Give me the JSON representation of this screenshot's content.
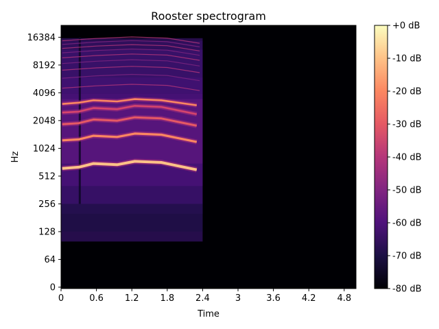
{
  "chart_data": {
    "type": "heatmap",
    "title": "Rooster spectrogram",
    "xlabel": "Time",
    "ylabel": "Hz",
    "x_scale": "linear",
    "y_scale": "symlog",
    "xlim": [
      0,
      5.0
    ],
    "x_ticks": [
      0,
      0.6,
      1.2,
      1.8,
      2.4,
      3.0,
      3.6,
      4.2,
      4.8
    ],
    "x_tick_labels": [
      "0",
      "0.6",
      "1.2",
      "1.8",
      "2.4",
      "3",
      "3.6",
      "4.2",
      "4.8"
    ],
    "y_ticks": [
      0,
      64,
      128,
      256,
      512,
      1024,
      2048,
      4096,
      8192,
      16384
    ],
    "y_tick_labels": [
      "0",
      "64",
      "128",
      "256",
      "512",
      "1024",
      "2048",
      "4096",
      "8192",
      "16384"
    ],
    "ylim": [
      0,
      22050
    ],
    "colormap": "magma",
    "colorbar": {
      "range": [
        -80,
        0
      ],
      "ticks": [
        0,
        -10,
        -20,
        -30,
        -40,
        -50,
        -60,
        -70,
        -80
      ],
      "tick_labels": [
        "+0 dB",
        "-10 dB",
        "-20 dB",
        "-30 dB",
        "-40 dB",
        "-50 dB",
        "-60 dB",
        "-70 dB",
        "-80 dB"
      ]
    },
    "sound_duration_s": 2.4,
    "harmonic_tracks_hz": [
      {
        "segments": [
          [
            0.02,
            620
          ],
          [
            0.3,
            640
          ],
          [
            0.55,
            700
          ],
          [
            0.95,
            680
          ],
          [
            1.25,
            740
          ],
          [
            1.7,
            720
          ],
          [
            2.3,
            600
          ]
        ]
      },
      {
        "segments": [
          [
            0.02,
            1250
          ],
          [
            0.3,
            1280
          ],
          [
            0.55,
            1400
          ],
          [
            0.95,
            1360
          ],
          [
            1.25,
            1480
          ],
          [
            1.7,
            1440
          ],
          [
            2.3,
            1200
          ]
        ]
      },
      {
        "segments": [
          [
            0.02,
            1870
          ],
          [
            0.3,
            1920
          ],
          [
            0.55,
            2100
          ],
          [
            0.95,
            2040
          ],
          [
            1.25,
            2220
          ],
          [
            1.7,
            2160
          ],
          [
            2.3,
            1800
          ]
        ]
      },
      {
        "segments": [
          [
            0.02,
            2500
          ],
          [
            0.3,
            2560
          ],
          [
            0.55,
            2800
          ],
          [
            0.95,
            2720
          ],
          [
            1.25,
            2960
          ],
          [
            1.7,
            2880
          ],
          [
            2.3,
            2400
          ]
        ]
      },
      {
        "segments": [
          [
            0.02,
            3100
          ],
          [
            0.3,
            3200
          ],
          [
            0.55,
            3400
          ],
          [
            0.95,
            3300
          ],
          [
            1.25,
            3500
          ],
          [
            1.7,
            3400
          ],
          [
            2.3,
            3000
          ]
        ]
      }
    ]
  },
  "colors": {
    "background": "#000004",
    "colormap_stops": [
      "#000004",
      "#1c1044",
      "#4f127b",
      "#812581",
      "#b5367a",
      "#e55964",
      "#fb8761",
      "#fec287",
      "#fcfdbf"
    ]
  }
}
